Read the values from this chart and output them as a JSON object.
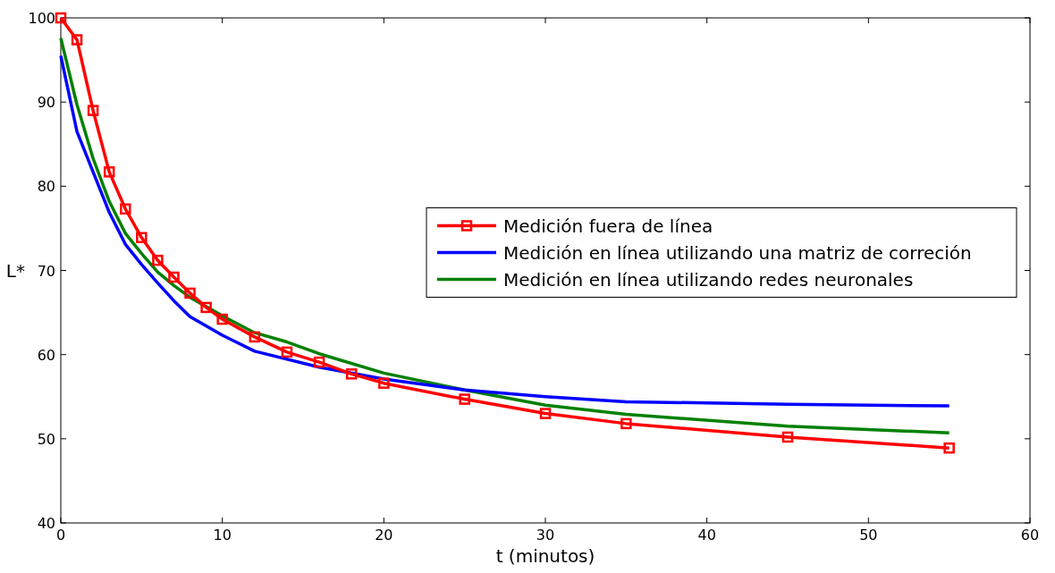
{
  "chart_data": {
    "type": "line",
    "xlabel": "t (minutos)",
    "ylabel": "L*",
    "xlim": [
      0,
      60
    ],
    "xticks": [
      0,
      10,
      20,
      30,
      40,
      50,
      60
    ],
    "ylim": [
      40,
      100
    ],
    "yticks": [
      40,
      50,
      60,
      70,
      80,
      90,
      100
    ],
    "grid": false,
    "legend": "right",
    "line_style": "solid",
    "series": [
      {
        "name": "Medición fuera de línea",
        "color": "#ff0000",
        "marker": "square",
        "x": [
          0,
          1,
          2,
          3,
          4,
          5,
          6,
          7,
          8,
          9,
          10,
          12,
          14,
          16,
          18,
          20,
          25,
          30,
          35,
          45,
          55
        ],
        "values": [
          100,
          97.4,
          89.0,
          81.7,
          77.3,
          73.9,
          71.2,
          69.2,
          67.3,
          65.6,
          64.2,
          62.1,
          60.3,
          59.1,
          57.7,
          56.6,
          54.7,
          53.0,
          51.8,
          50.2,
          48.9
        ]
      },
      {
        "name": "Medición en línea utilizando una matriz de correción",
        "color": "#0000ff",
        "marker": "none",
        "x": [
          0,
          1,
          2,
          3,
          4,
          5,
          6,
          7,
          8,
          10,
          12,
          16,
          20,
          25,
          30,
          35,
          45,
          55
        ],
        "values": [
          95.5,
          86.5,
          81.7,
          76.9,
          73.1,
          70.7,
          68.5,
          66.4,
          64.5,
          62.3,
          60.4,
          58.5,
          57.1,
          55.8,
          55.0,
          54.4,
          54.1,
          53.9
        ]
      },
      {
        "name": "Medición en línea utilizando redes neuronales",
        "color": "#008000",
        "marker": "none",
        "x": [
          0,
          1,
          2,
          3,
          4,
          5,
          6,
          7,
          8,
          10,
          12,
          14,
          16,
          20,
          25,
          30,
          35,
          45,
          55
        ],
        "values": [
          97.6,
          89.7,
          83.3,
          78.2,
          74.4,
          72.0,
          69.8,
          68.2,
          66.8,
          64.6,
          62.6,
          61.5,
          60.1,
          57.8,
          55.8,
          54.0,
          52.9,
          51.5,
          50.7
        ]
      }
    ]
  }
}
